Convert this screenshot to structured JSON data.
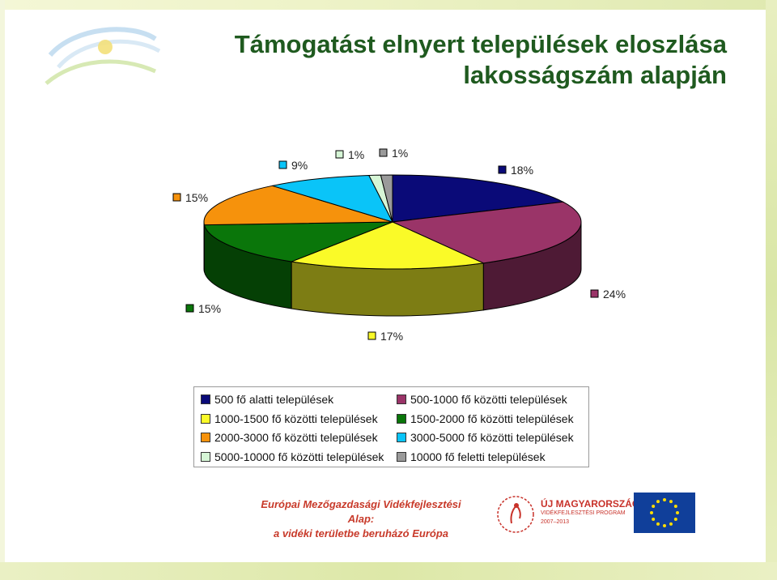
{
  "title": {
    "line1": "Támogatást elnyert települések eloszlása",
    "line2": "lakosságszám alapján"
  },
  "chart_data": {
    "type": "pie",
    "title": "Támogatást elnyert települések eloszlása lakosságszám alapján",
    "series": [
      {
        "name": "500 fő alatti települések",
        "label": "18%",
        "value": 18,
        "color": "#0a0a78",
        "side": "#05054a"
      },
      {
        "name": "500-1000 fő közötti települések",
        "label": "24%",
        "value": 24,
        "color": "#9a3468",
        "side": "#4e1a35"
      },
      {
        "name": "1000-1500 fő közötti települések",
        "label": "17%",
        "value": 17,
        "color": "#fafa28",
        "side": "#7d7d14"
      },
      {
        "name": "1500-2000 fő közötti települések",
        "label": "15%",
        "value": 15,
        "color": "#0a760a",
        "side": "#054005"
      },
      {
        "name": "2000-3000 fő közötti települések",
        "label": "15%",
        "value": 15,
        "color": "#f6920c",
        "side": "#7b4906"
      },
      {
        "name": "3000-5000 fő közötti települések",
        "label": "9%",
        "value": 9,
        "color": "#0ac4f8",
        "side": "#05627c"
      },
      {
        "name": "5000-10000 fő közötti települések",
        "label": "1%",
        "value": 1,
        "color": "#d6f6d6",
        "side": "#6b7b6b"
      },
      {
        "name": "10000 fő feletti települések",
        "label": "1%",
        "value": 1,
        "color": "#9a9a9a",
        "side": "#4d4d4d"
      }
    ],
    "legend_position": "bottom"
  },
  "footer": {
    "eafrd_line1": "Európai Mezőgazdasági Vidékfejlesztési Alap:",
    "eafrd_line2": "a vidéki területbe beruházó Európa",
    "umvp_line1": "ÚJ MAGYARORSZÁG",
    "umvp_line2": "VIDÉKFEJLESZTÉSI PROGRAM",
    "umvp_line3": "2007–2013"
  }
}
